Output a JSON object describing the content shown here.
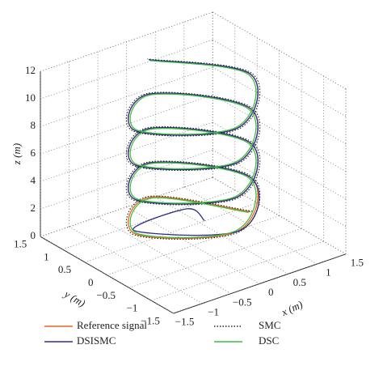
{
  "chart_data": {
    "type": "line3d",
    "xlabel": "x (m)",
    "ylabel": "y (m)",
    "zlabel": "z (m)",
    "xlim": [
      -1.5,
      1.5
    ],
    "ylim": [
      -1.5,
      1.5
    ],
    "zlim": [
      0,
      12
    ],
    "xticks": [
      {
        "value": -1.5,
        "label": "−1.5"
      },
      {
        "value": -1,
        "label": "−1"
      },
      {
        "value": -0.5,
        "label": "−0.5"
      },
      0,
      0.5,
      1,
      1.5
    ],
    "yticks": [
      {
        "value": -1.5,
        "label": "−1.5"
      },
      {
        "value": -1,
        "label": "−1"
      },
      {
        "value": -0.5,
        "label": "−0.5"
      },
      0,
      0.5,
      1,
      1.5
    ],
    "zticks": [
      0,
      2,
      4,
      6,
      8,
      10,
      12
    ],
    "grid": true,
    "series": [
      {
        "name": "Reference signal",
        "color": "#e8641e",
        "dash": "solid",
        "x": [
          1,
          0,
          -1,
          0,
          1,
          0,
          -1,
          0,
          1,
          0,
          -1,
          0,
          1,
          0,
          -1,
          0,
          1,
          0
        ],
        "y": [
          0,
          1,
          0,
          -1,
          0,
          1,
          0,
          -1,
          0,
          1,
          0,
          -1,
          0,
          1,
          0,
          -1,
          0,
          1
        ],
        "z": [
          1,
          1.625,
          2.25,
          2.875,
          3.5,
          4.125,
          4.75,
          5.375,
          6,
          6.625,
          7.25,
          7.875,
          8.5,
          9.125,
          9.75,
          10.375,
          11,
          11.625
        ]
      },
      {
        "name": "DSISMC",
        "color": "#2b2b8f",
        "dash": "solid",
        "x": [
          0.2,
          0.2,
          -0.95,
          0.05,
          1,
          0,
          -1,
          0,
          1,
          0,
          -1,
          0,
          1,
          0,
          -1,
          0,
          1,
          0
        ],
        "y": [
          0,
          0.4,
          0.1,
          -1,
          0,
          1,
          0,
          -1,
          0,
          1,
          0,
          -1,
          0,
          1,
          0,
          -1,
          0,
          1
        ],
        "z": [
          1.5,
          1.625,
          2.25,
          2.875,
          3.5,
          4.125,
          4.75,
          5.375,
          6,
          6.625,
          7.25,
          7.875,
          8.5,
          9.125,
          9.75,
          10.375,
          11,
          11.625
        ]
      },
      {
        "name": "SMC",
        "color": "#222222",
        "dash": "dotted",
        "x": [
          1.03,
          0,
          -1.03,
          0,
          1.03,
          0,
          -1.03,
          0,
          1.03,
          0,
          -1.03,
          0,
          1.03,
          0,
          -1.03,
          0,
          1.03,
          0
        ],
        "y": [
          0,
          1.03,
          0,
          -1.03,
          0,
          1.03,
          0,
          -1.03,
          0,
          1.03,
          0,
          -1.03,
          0,
          1.03,
          0,
          -1.03,
          0,
          1.03
        ],
        "z": [
          1,
          1.625,
          2.25,
          2.875,
          3.5,
          4.125,
          4.75,
          5.375,
          6,
          6.625,
          7.25,
          7.875,
          8.5,
          9.125,
          9.75,
          10.375,
          11,
          11.625
        ]
      },
      {
        "name": "DSC",
        "color": "#3fbf3f",
        "dash": "solid",
        "x": [
          0.97,
          0,
          -0.97,
          0,
          0.97,
          0,
          -0.97,
          0,
          0.97,
          0,
          -0.97,
          0,
          0.97,
          0,
          -0.97,
          0,
          0.97,
          0
        ],
        "y": [
          0,
          0.97,
          0,
          -0.97,
          0,
          0.97,
          0,
          -0.97,
          0,
          0.97,
          0,
          -0.97,
          0,
          0.97,
          0,
          -0.97,
          0,
          0.97
        ],
        "z": [
          1,
          1.625,
          2.25,
          2.875,
          3.5,
          4.125,
          4.75,
          5.375,
          6,
          6.625,
          7.25,
          7.875,
          8.5,
          9.125,
          9.75,
          10.375,
          11,
          11.625
        ]
      }
    ]
  }
}
